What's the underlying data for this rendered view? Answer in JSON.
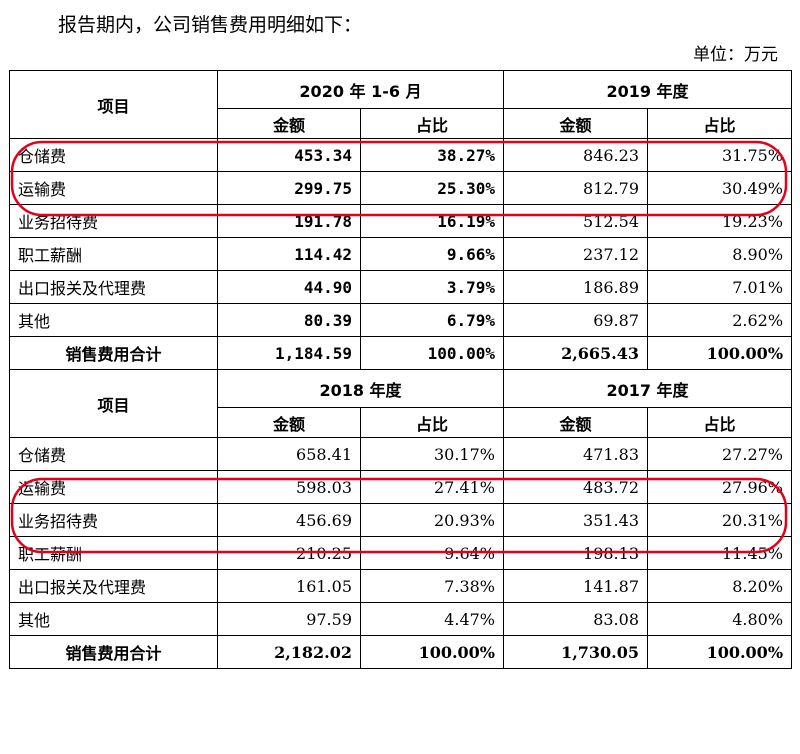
{
  "intro": "报告期内，公司销售费用明细如下：",
  "unit": "单位：万元",
  "col_headers": {
    "item": "项目",
    "amount": "金额",
    "ratio": "占比"
  },
  "highlight_color": "#e4001b",
  "sections": [
    {
      "periods": [
        "2020 年 1-6 月",
        "2019 年度"
      ],
      "rows": [
        {
          "item": "仓储费",
          "v": [
            "453.34",
            "38.27%",
            "846.23",
            "31.75%"
          ]
        },
        {
          "item": "运输费",
          "v": [
            "299.75",
            "25.30%",
            "812.79",
            "30.49%"
          ]
        },
        {
          "item": "业务招待费",
          "v": [
            "191.78",
            "16.19%",
            "512.54",
            "19.23%"
          ]
        },
        {
          "item": "职工薪酬",
          "v": [
            "114.42",
            "9.66%",
            "237.12",
            "8.90%"
          ]
        },
        {
          "item": "出口报关及代理费",
          "v": [
            "44.90",
            "3.79%",
            "186.89",
            "7.01%"
          ]
        },
        {
          "item": "其他",
          "v": [
            "80.39",
            "6.79%",
            "69.87",
            "2.62%"
          ]
        }
      ],
      "total": {
        "item": "销售费用合计",
        "v": [
          "1,184.59",
          "100.00%",
          "2,665.43",
          "100.00%"
        ]
      }
    },
    {
      "periods": [
        "2018 年度",
        "2017 年度"
      ],
      "rows": [
        {
          "item": "仓储费",
          "v": [
            "658.41",
            "30.17%",
            "471.83",
            "27.27%"
          ]
        },
        {
          "item": "运输费",
          "v": [
            "598.03",
            "27.41%",
            "483.72",
            "27.96%"
          ]
        },
        {
          "item": "业务招待费",
          "v": [
            "456.69",
            "20.93%",
            "351.43",
            "20.31%"
          ]
        },
        {
          "item": "职工薪酬",
          "v": [
            "210.25",
            "9.64%",
            "198.13",
            "11.45%"
          ]
        },
        {
          "item": "出口报关及代理费",
          "v": [
            "161.05",
            "7.38%",
            "141.87",
            "8.20%"
          ]
        },
        {
          "item": "其他",
          "v": [
            "97.59",
            "4.47%",
            "83.08",
            "4.80%"
          ]
        }
      ],
      "total": {
        "item": "销售费用合计",
        "v": [
          "2,182.02",
          "100.00%",
          "1,730.05",
          "100.00%"
        ]
      }
    }
  ]
}
